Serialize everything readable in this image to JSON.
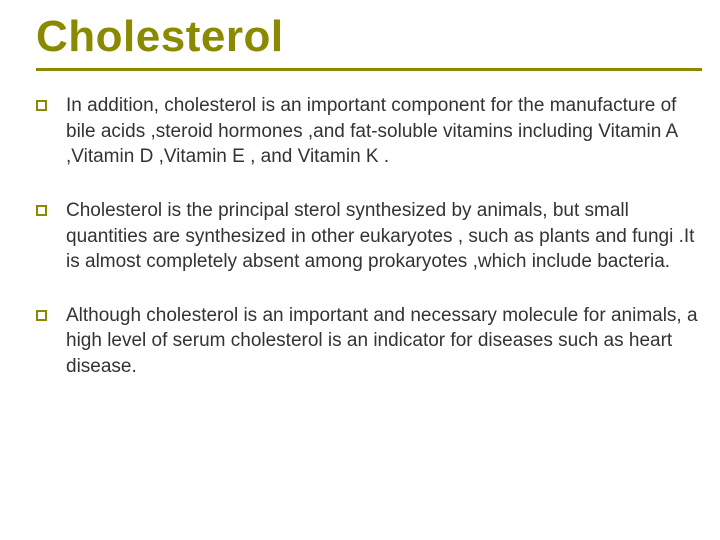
{
  "title": {
    "text": "Cholesterol",
    "color": "#8a8a00",
    "fontsize": 44
  },
  "rule": {
    "color": "#8a8a00"
  },
  "bullet": {
    "box_border_color": "#8a8a00"
  },
  "body": {
    "text_color": "#333333",
    "fontsize": 19,
    "paragraphs": [
      "In addition, cholesterol is an important component for the manufacture of bile acids ,steroid hormones ,and fat-soluble vitamins including Vitamin A ,Vitamin D ,Vitamin E , and Vitamin K .",
      "Cholesterol is the principal sterol synthesized by animals, but small quantities are synthesized in other eukaryotes , such as plants and fungi .It is almost completely absent among prokaryotes ,which include bacteria.",
      "Although cholesterol is an important and necessary molecule for animals, a high level of serum cholesterol is an indicator for diseases such as heart disease."
    ]
  }
}
